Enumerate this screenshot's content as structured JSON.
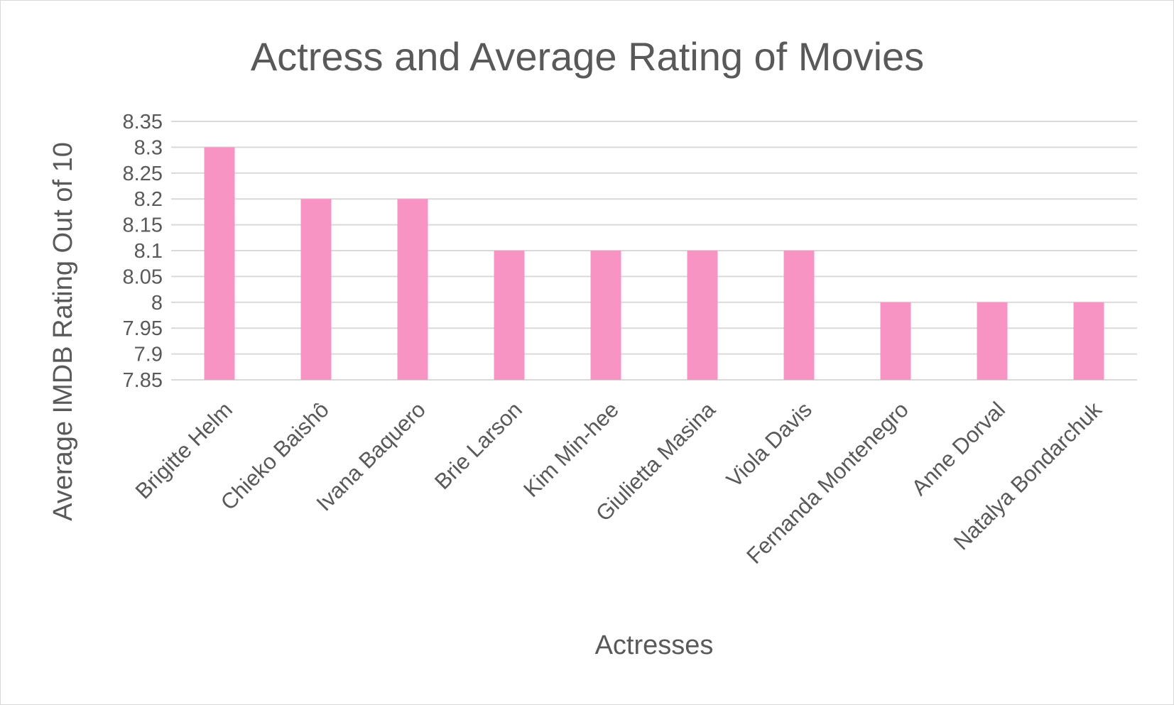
{
  "chart_data": {
    "type": "bar",
    "title": "Actress and Average Rating of Movies",
    "xlabel": "Actresses",
    "ylabel": "Average IMDB Rating Out of 10",
    "categories": [
      "Brigitte Helm",
      "Chieko Baishô",
      "Ivana Baquero",
      "Brie Larson",
      "Kim Min-hee",
      "Giulietta Masina",
      "Viola Davis",
      "Fernanda Montenegro",
      "Anne Dorval",
      "Natalya Bondarchuk"
    ],
    "values": [
      8.3,
      8.2,
      8.2,
      8.1,
      8.1,
      8.1,
      8.1,
      8.0,
      8.0,
      8.0
    ],
    "ylim": [
      7.85,
      8.35
    ],
    "yticks": [
      "7.85",
      "7.9",
      "7.95",
      "8",
      "8.05",
      "8.1",
      "8.15",
      "8.2",
      "8.25",
      "8.3",
      "8.35"
    ],
    "grid": true,
    "legend": "none",
    "bar_color": "#f794c4"
  }
}
